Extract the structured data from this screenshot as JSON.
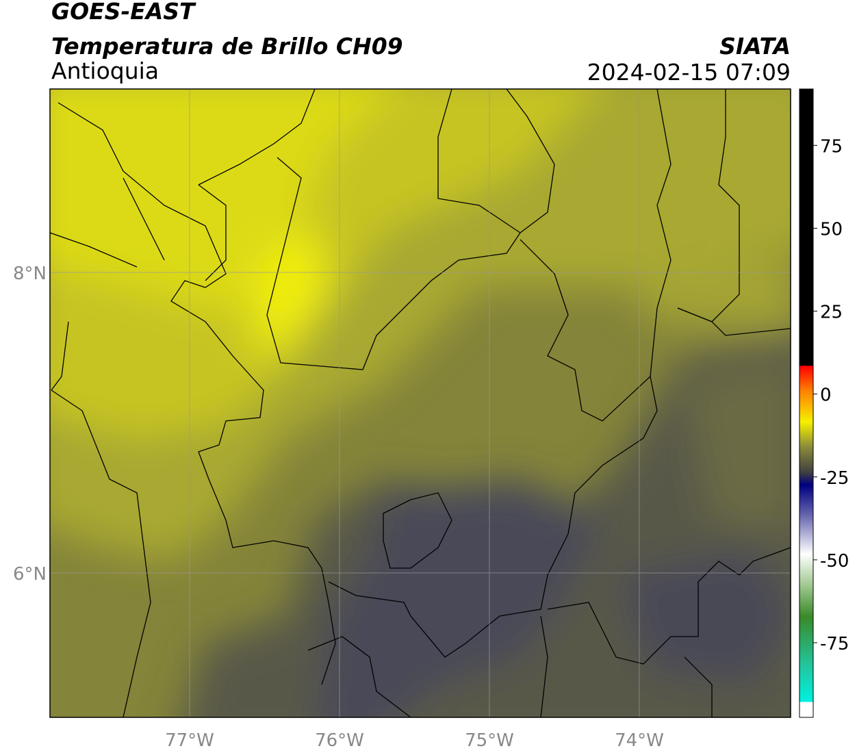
{
  "header": {
    "title": "GOES-EAST",
    "subtitle": "Temperatura de Brillo CH09",
    "region": "Antioquia",
    "source": "SIATA",
    "datetime": "2024-02-15 07:09"
  },
  "map": {
    "xticks": [
      "77°W",
      "76°W",
      "75°W",
      "74°W"
    ],
    "yticks": [
      "8°N",
      "6°N"
    ]
  },
  "colorbar": {
    "range": [
      -97.5,
      92
    ],
    "ticks": [
      75,
      50,
      25,
      0,
      -25,
      -50,
      -75
    ]
  }
}
